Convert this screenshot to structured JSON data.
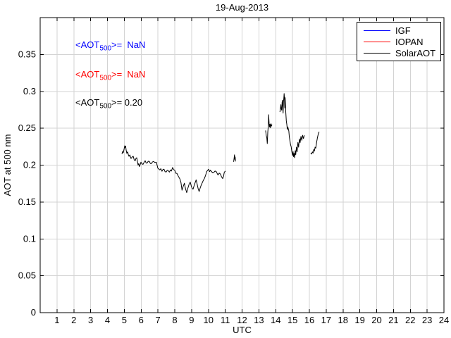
{
  "chart_data": {
    "type": "line",
    "title": "19-Aug-2013",
    "xlabel": "UTC",
    "ylabel": "AOT at 500 nm",
    "xlim": [
      0,
      24
    ],
    "ylim": [
      0,
      0.4
    ],
    "grid": true,
    "grid_color": "#d3d3d3",
    "axis_color": "#000000",
    "legend_position": "top-right",
    "xticks": [
      1,
      2,
      3,
      4,
      5,
      6,
      7,
      8,
      9,
      10,
      11,
      12,
      13,
      14,
      15,
      16,
      17,
      18,
      19,
      20,
      21,
      22,
      23,
      24
    ],
    "yticks": [
      {
        "v": 0,
        "label": "0"
      },
      {
        "v": 0.05,
        "label": "0.05"
      },
      {
        "v": 0.1,
        "label": "0.1"
      },
      {
        "v": 0.15,
        "label": "0.15"
      },
      {
        "v": 0.2,
        "label": "0.2"
      },
      {
        "v": 0.25,
        "label": "0.25"
      },
      {
        "v": 0.3,
        "label": "0.3"
      },
      {
        "v": 0.35,
        "label": "0.35"
      }
    ],
    "series": [
      {
        "name": "IGF",
        "color": "#0000ff",
        "segments": []
      },
      {
        "name": "IOPAN",
        "color": "#ff0000",
        "segments": []
      },
      {
        "name": "SolarAOT",
        "color": "#000000",
        "segments": [
          [
            [
              4.86,
              0.215
            ],
            [
              4.9,
              0.2185
            ],
            [
              4.94,
              0.2168
            ],
            [
              4.98,
              0.221
            ],
            [
              5.03,
              0.2262
            ],
            [
              5.06,
              0.224
            ],
            [
              5.08,
              0.2258
            ],
            [
              5.11,
              0.2205
            ],
            [
              5.15,
              0.216
            ],
            [
              5.2,
              0.218
            ],
            [
              5.24,
              0.2143
            ],
            [
              5.28,
              0.212
            ],
            [
              5.33,
              0.2138
            ],
            [
              5.4,
              0.209
            ],
            [
              5.46,
              0.2108
            ],
            [
              5.53,
              0.212
            ],
            [
              5.59,
              0.2072
            ],
            [
              5.65,
              0.206
            ],
            [
              5.7,
              0.2095
            ],
            [
              5.74,
              0.21
            ],
            [
              5.78,
              0.2052
            ],
            [
              5.82,
              0.2
            ],
            [
              5.86,
              0.2022
            ],
            [
              5.9,
              0.198
            ],
            [
              5.95,
              0.201
            ],
            [
              5.99,
              0.204
            ],
            [
              6.05,
              0.2018
            ],
            [
              6.11,
              0.201
            ],
            [
              6.17,
              0.2035
            ],
            [
              6.24,
              0.206
            ],
            [
              6.3,
              0.2028
            ],
            [
              6.36,
              0.203
            ],
            [
              6.42,
              0.2052
            ],
            [
              6.49,
              0.205
            ],
            [
              6.55,
              0.2022
            ],
            [
              6.61,
              0.202
            ],
            [
              6.67,
              0.2042
            ],
            [
              6.74,
              0.205
            ],
            [
              6.82,
              0.2035
            ],
            [
              6.9,
              0.204
            ],
            [
              6.95,
              0.2
            ],
            [
              6.99,
              0.196
            ],
            [
              7.05,
              0.1948
            ],
            [
              7.11,
              0.1935
            ],
            [
              7.17,
              0.1952
            ],
            [
              7.24,
              0.1917
            ],
            [
              7.3,
              0.194
            ],
            [
              7.36,
              0.1945
            ],
            [
              7.42,
              0.1912
            ],
            [
              7.49,
              0.1907
            ],
            [
              7.55,
              0.193
            ],
            [
              7.61,
              0.1926
            ],
            [
              7.68,
              0.1905
            ],
            [
              7.74,
              0.1935
            ],
            [
              7.8,
              0.192
            ],
            [
              7.87,
              0.1968
            ],
            [
              7.93,
              0.194
            ],
            [
              8.0,
              0.193
            ],
            [
              8.06,
              0.189
            ],
            [
              8.13,
              0.1888
            ],
            [
              8.2,
              0.1855
            ],
            [
              8.26,
              0.183
            ],
            [
              8.31,
              0.181
            ],
            [
              8.37,
              0.1762
            ],
            [
              8.43,
              0.166
            ],
            [
              8.5,
              0.171
            ],
            [
              8.57,
              0.1755
            ],
            [
              8.64,
              0.168
            ],
            [
              8.71,
              0.1628
            ],
            [
              8.78,
              0.1688
            ],
            [
              8.85,
              0.174
            ],
            [
              8.92,
              0.177
            ],
            [
              8.98,
              0.1718
            ],
            [
              9.04,
              0.1682
            ],
            [
              9.09,
              0.1675
            ],
            [
              9.15,
              0.1722
            ],
            [
              9.21,
              0.1762
            ],
            [
              9.27,
              0.18
            ],
            [
              9.33,
              0.1742
            ],
            [
              9.39,
              0.168
            ],
            [
              9.45,
              0.1643
            ],
            [
              9.51,
              0.169
            ],
            [
              9.56,
              0.1722
            ],
            [
              9.62,
              0.1754
            ],
            [
              9.69,
              0.179
            ],
            [
              9.76,
              0.1818
            ],
            [
              9.83,
              0.186
            ],
            [
              9.9,
              0.1914
            ],
            [
              9.96,
              0.193
            ],
            [
              10.01,
              0.1945
            ],
            [
              10.07,
              0.1912
            ],
            [
              10.12,
              0.193
            ],
            [
              10.18,
              0.1914
            ],
            [
              10.25,
              0.1896
            ],
            [
              10.32,
              0.19
            ],
            [
              10.39,
              0.192
            ],
            [
              10.46,
              0.1914
            ],
            [
              10.52,
              0.1888
            ],
            [
              10.57,
              0.1866
            ],
            [
              10.64,
              0.1892
            ],
            [
              10.71,
              0.188
            ],
            [
              10.78,
              0.1842
            ],
            [
              10.85,
              0.1818
            ],
            [
              10.9,
              0.185
            ],
            [
              10.94,
              0.19
            ],
            [
              10.98,
              0.1914
            ],
            [
              11.02,
              0.1919
            ]
          ],
          [
            [
              11.5,
              0.2045
            ],
            [
              11.53,
              0.21
            ],
            [
              11.55,
              0.214
            ],
            [
              11.57,
              0.2078
            ],
            [
              11.59,
              0.211
            ],
            [
              11.61,
              0.205
            ]
          ],
          [
            [
              13.4,
              0.2469
            ],
            [
              13.44,
              0.24
            ],
            [
              13.47,
              0.2372
            ],
            [
              13.5,
              0.2292
            ],
            [
              13.53,
              0.245
            ],
            [
              13.56,
              0.2533
            ],
            [
              13.58,
              0.2684
            ],
            [
              13.61,
              0.256
            ],
            [
              13.63,
              0.2517
            ],
            [
              13.66,
              0.2555
            ],
            [
              13.69,
              0.2505
            ],
            [
              13.72,
              0.2562
            ],
            [
              13.75,
              0.253
            ],
            [
              13.78,
              0.2549
            ]
          ],
          [
            [
              14.25,
              0.272
            ],
            [
              14.28,
              0.277
            ],
            [
              14.31,
              0.282
            ],
            [
              14.33,
              0.276
            ],
            [
              14.36,
              0.2745
            ],
            [
              14.38,
              0.285
            ],
            [
              14.4,
              0.288
            ],
            [
              14.42,
              0.279
            ],
            [
              14.44,
              0.2705
            ],
            [
              14.46,
              0.2855
            ],
            [
              14.48,
              0.29
            ],
            [
              14.5,
              0.297
            ],
            [
              14.52,
              0.2905
            ],
            [
              14.54,
              0.2775
            ],
            [
              14.56,
              0.2915
            ],
            [
              14.58,
              0.282
            ],
            [
              14.6,
              0.2713
            ],
            [
              14.63,
              0.26
            ],
            [
              14.66,
              0.2553
            ],
            [
              14.69,
              0.2484
            ],
            [
              14.72,
              0.2518
            ],
            [
              14.75,
              0.249
            ],
            [
              14.78,
              0.2462
            ],
            [
              14.81,
              0.238
            ],
            [
              14.84,
              0.2339
            ],
            [
              14.88,
              0.228
            ],
            [
              14.92,
              0.2248
            ],
            [
              14.96,
              0.2179
            ],
            [
              15.0,
              0.213
            ],
            [
              15.03,
              0.2184
            ],
            [
              15.06,
              0.2115
            ],
            [
              15.09,
              0.216
            ],
            [
              15.12,
              0.2101
            ],
            [
              15.16,
              0.2196
            ],
            [
              15.19,
              0.2141
            ],
            [
              15.23,
              0.2244
            ],
            [
              15.27,
              0.218
            ],
            [
              15.32,
              0.2308
            ],
            [
              15.36,
              0.2243
            ],
            [
              15.41,
              0.2356
            ],
            [
              15.45,
              0.2305
            ],
            [
              15.5,
              0.2389
            ],
            [
              15.55,
              0.2336
            ],
            [
              15.6,
              0.2404
            ],
            [
              15.65,
              0.236
            ],
            [
              15.7,
              0.2404
            ]
          ],
          [
            [
              16.08,
              0.2163
            ],
            [
              16.13,
              0.215
            ],
            [
              16.18,
              0.218
            ],
            [
              16.22,
              0.2163
            ],
            [
              16.26,
              0.2212
            ],
            [
              16.3,
              0.219
            ],
            [
              16.34,
              0.2244
            ],
            [
              16.38,
              0.223
            ],
            [
              16.43,
              0.2308
            ],
            [
              16.48,
              0.2372
            ],
            [
              16.53,
              0.2421
            ],
            [
              16.58,
              0.2453
            ]
          ]
        ]
      }
    ],
    "annotations": [
      {
        "name": "IGF",
        "prefix": "<AOT",
        "sub": "500",
        "suffix": ">=  NaN",
        "color": "#0000ff"
      },
      {
        "name": "IOPAN",
        "prefix": "<AOT",
        "sub": "500",
        "suffix": ">=  NaN",
        "color": "#ff0000"
      },
      {
        "name": "SolarAOT",
        "prefix": "<AOT",
        "sub": "500",
        "suffix": ">= 0.20",
        "color": "#000000"
      }
    ]
  }
}
